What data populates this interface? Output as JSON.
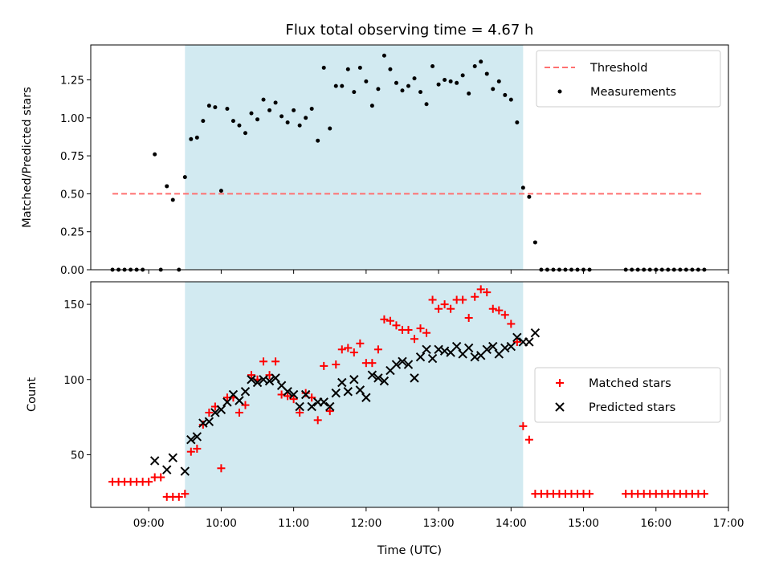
{
  "chart_data": [
    {
      "type": "scatter",
      "title": "Flux total observing time = 4.67 h",
      "xlabel": "",
      "ylabel": "Matched/Predicted stars",
      "xlim": [
        "08:12",
        "17:00"
      ],
      "ylim": [
        0,
        1.48
      ],
      "yticks": [
        0.0,
        0.25,
        0.5,
        0.75,
        1.0,
        1.25
      ],
      "ytick_labels": [
        "0.00",
        "0.25",
        "0.50",
        "0.75",
        "1.00",
        "1.25"
      ],
      "shaded_interval": [
        "09:30",
        "14:10"
      ],
      "shade_color": "#add8e6",
      "legend_position": "top-right",
      "series": [
        {
          "name": "Threshold",
          "style": "dashed-line",
          "color": "#ff7070",
          "points": [
            [
              "08:30",
              0.5
            ],
            [
              "16:40",
              0.5
            ]
          ]
        },
        {
          "name": "Measurements",
          "style": "dot",
          "color": "#000000",
          "points": [
            [
              "08:30",
              0.0
            ],
            [
              "08:35",
              0.0
            ],
            [
              "08:40",
              0.0
            ],
            [
              "08:45",
              0.0
            ],
            [
              "08:50",
              0.0
            ],
            [
              "08:55",
              0.0
            ],
            [
              "09:05",
              0.76
            ],
            [
              "09:10",
              0.0
            ],
            [
              "09:15",
              0.55
            ],
            [
              "09:20",
              0.46
            ],
            [
              "09:25",
              0.0
            ],
            [
              "09:30",
              0.61
            ],
            [
              "09:35",
              0.86
            ],
            [
              "09:40",
              0.87
            ],
            [
              "09:45",
              0.98
            ],
            [
              "09:50",
              1.08
            ],
            [
              "09:55",
              1.07
            ],
            [
              "10:00",
              0.52
            ],
            [
              "10:05",
              1.06
            ],
            [
              "10:10",
              0.98
            ],
            [
              "10:15",
              0.95
            ],
            [
              "10:20",
              0.9
            ],
            [
              "10:25",
              1.03
            ],
            [
              "10:30",
              0.99
            ],
            [
              "10:35",
              1.12
            ],
            [
              "10:40",
              1.05
            ],
            [
              "10:45",
              1.1
            ],
            [
              "10:50",
              1.01
            ],
            [
              "10:55",
              0.97
            ],
            [
              "11:00",
              1.05
            ],
            [
              "11:05",
              0.95
            ],
            [
              "11:10",
              1.0
            ],
            [
              "11:15",
              1.06
            ],
            [
              "11:20",
              0.85
            ],
            [
              "11:25",
              1.33
            ],
            [
              "11:30",
              0.93
            ],
            [
              "11:35",
              1.21
            ],
            [
              "11:40",
              1.21
            ],
            [
              "11:45",
              1.32
            ],
            [
              "11:50",
              1.17
            ],
            [
              "11:55",
              1.33
            ],
            [
              "12:00",
              1.24
            ],
            [
              "12:05",
              1.08
            ],
            [
              "12:10",
              1.19
            ],
            [
              "12:15",
              1.41
            ],
            [
              "12:20",
              1.32
            ],
            [
              "12:25",
              1.23
            ],
            [
              "12:30",
              1.18
            ],
            [
              "12:35",
              1.21
            ],
            [
              "12:40",
              1.26
            ],
            [
              "12:45",
              1.17
            ],
            [
              "12:50",
              1.09
            ],
            [
              "12:55",
              1.34
            ],
            [
              "13:00",
              1.22
            ],
            [
              "13:05",
              1.25
            ],
            [
              "13:10",
              1.24
            ],
            [
              "13:15",
              1.23
            ],
            [
              "13:20",
              1.28
            ],
            [
              "13:25",
              1.16
            ],
            [
              "13:30",
              1.34
            ],
            [
              "13:35",
              1.37
            ],
            [
              "13:40",
              1.29
            ],
            [
              "13:45",
              1.19
            ],
            [
              "13:50",
              1.24
            ],
            [
              "13:55",
              1.15
            ],
            [
              "14:00",
              1.12
            ],
            [
              "14:05",
              0.97
            ],
            [
              "14:10",
              0.54
            ],
            [
              "14:15",
              0.48
            ],
            [
              "14:20",
              0.18
            ],
            [
              "14:25",
              0.0
            ],
            [
              "14:30",
              0.0
            ],
            [
              "14:35",
              0.0
            ],
            [
              "14:40",
              0.0
            ],
            [
              "14:45",
              0.0
            ],
            [
              "14:50",
              0.0
            ],
            [
              "14:55",
              0.0
            ],
            [
              "15:00",
              0.0
            ],
            [
              "15:05",
              0.0
            ],
            [
              "15:35",
              0.0
            ],
            [
              "15:40",
              0.0
            ],
            [
              "15:45",
              0.0
            ],
            [
              "15:50",
              0.0
            ],
            [
              "15:55",
              0.0
            ],
            [
              "16:00",
              0.0
            ],
            [
              "16:05",
              0.0
            ],
            [
              "16:10",
              0.0
            ],
            [
              "16:15",
              0.0
            ],
            [
              "16:20",
              0.0
            ],
            [
              "16:25",
              0.0
            ],
            [
              "16:30",
              0.0
            ],
            [
              "16:35",
              0.0
            ],
            [
              "16:40",
              0.0
            ]
          ]
        }
      ]
    },
    {
      "type": "scatter",
      "title": "",
      "xlabel": "Time (UTC)",
      "ylabel": "Count",
      "xlim": [
        "08:12",
        "17:00"
      ],
      "xticks": [
        "09:00",
        "10:00",
        "11:00",
        "12:00",
        "13:00",
        "14:00",
        "15:00",
        "16:00",
        "17:00"
      ],
      "ylim": [
        15,
        165
      ],
      "yticks": [
        50,
        100,
        150
      ],
      "ytick_labels": [
        "50",
        "100",
        "150"
      ],
      "shaded_interval": [
        "09:30",
        "14:10"
      ],
      "shade_color": "#add8e6",
      "legend_position": "center-right",
      "series": [
        {
          "name": "Matched stars",
          "style": "plus",
          "color": "#ff0000",
          "points": [
            [
              "08:30",
              32
            ],
            [
              "08:35",
              32
            ],
            [
              "08:40",
              32
            ],
            [
              "08:45",
              32
            ],
            [
              "08:50",
              32
            ],
            [
              "08:55",
              32
            ],
            [
              "09:00",
              32
            ],
            [
              "09:05",
              35
            ],
            [
              "09:10",
              35
            ],
            [
              "09:15",
              22
            ],
            [
              "09:20",
              22
            ],
            [
              "09:25",
              22
            ],
            [
              "09:30",
              24
            ],
            [
              "09:35",
              52
            ],
            [
              "09:40",
              54
            ],
            [
              "09:45",
              70
            ],
            [
              "09:50",
              78
            ],
            [
              "09:55",
              82
            ],
            [
              "10:00",
              41
            ],
            [
              "10:05",
              88
            ],
            [
              "10:10",
              88
            ],
            [
              "10:15",
              78
            ],
            [
              "10:20",
              83
            ],
            [
              "10:25",
              103
            ],
            [
              "10:30",
              100
            ],
            [
              "10:35",
              112
            ],
            [
              "10:40",
              103
            ],
            [
              "10:45",
              112
            ],
            [
              "10:50",
              90
            ],
            [
              "10:55",
              89
            ],
            [
              "11:00",
              87
            ],
            [
              "11:05",
              78
            ],
            [
              "11:10",
              91
            ],
            [
              "11:15",
              88
            ],
            [
              "11:20",
              73
            ],
            [
              "11:25",
              109
            ],
            [
              "11:30",
              79
            ],
            [
              "11:35",
              110
            ],
            [
              "11:40",
              120
            ],
            [
              "11:45",
              121
            ],
            [
              "11:50",
              118
            ],
            [
              "11:55",
              124
            ],
            [
              "12:00",
              111
            ],
            [
              "12:05",
              111
            ],
            [
              "12:10",
              120
            ],
            [
              "12:15",
              140
            ],
            [
              "12:20",
              139
            ],
            [
              "12:25",
              136
            ],
            [
              "12:30",
              133
            ],
            [
              "12:35",
              133
            ],
            [
              "12:40",
              127
            ],
            [
              "12:45",
              134
            ],
            [
              "12:50",
              131
            ],
            [
              "12:55",
              153
            ],
            [
              "13:00",
              147
            ],
            [
              "13:05",
              150
            ],
            [
              "13:10",
              147
            ],
            [
              "13:15",
              153
            ],
            [
              "13:20",
              153
            ],
            [
              "13:25",
              141
            ],
            [
              "13:30",
              155
            ],
            [
              "13:35",
              160
            ],
            [
              "13:40",
              158
            ],
            [
              "13:45",
              147
            ],
            [
              "13:50",
              146
            ],
            [
              "13:55",
              143
            ],
            [
              "14:00",
              137
            ],
            [
              "14:05",
              125
            ],
            [
              "14:10",
              69
            ],
            [
              "14:15",
              60
            ],
            [
              "14:20",
              24
            ],
            [
              "14:25",
              24
            ],
            [
              "14:30",
              24
            ],
            [
              "14:35",
              24
            ],
            [
              "14:40",
              24
            ],
            [
              "14:45",
              24
            ],
            [
              "14:50",
              24
            ],
            [
              "14:55",
              24
            ],
            [
              "15:00",
              24
            ],
            [
              "15:05",
              24
            ],
            [
              "15:35",
              24
            ],
            [
              "15:40",
              24
            ],
            [
              "15:45",
              24
            ],
            [
              "15:50",
              24
            ],
            [
              "15:55",
              24
            ],
            [
              "16:00",
              24
            ],
            [
              "16:05",
              24
            ],
            [
              "16:10",
              24
            ],
            [
              "16:15",
              24
            ],
            [
              "16:20",
              24
            ],
            [
              "16:25",
              24
            ],
            [
              "16:30",
              24
            ],
            [
              "16:35",
              24
            ],
            [
              "16:40",
              24
            ]
          ]
        },
        {
          "name": "Predicted stars",
          "style": "x",
          "color": "#000000",
          "points": [
            [
              "09:05",
              46
            ],
            [
              "09:15",
              40
            ],
            [
              "09:20",
              48
            ],
            [
              "09:30",
              39
            ],
            [
              "09:35",
              60
            ],
            [
              "09:40",
              62
            ],
            [
              "09:45",
              71
            ],
            [
              "09:50",
              72
            ],
            [
              "09:55",
              78
            ],
            [
              "10:00",
              80
            ],
            [
              "10:05",
              85
            ],
            [
              "10:10",
              90
            ],
            [
              "10:15",
              86
            ],
            [
              "10:20",
              92
            ],
            [
              "10:25",
              100
            ],
            [
              "10:30",
              98
            ],
            [
              "10:35",
              100
            ],
            [
              "10:40",
              99
            ],
            [
              "10:45",
              101
            ],
            [
              "10:50",
              96
            ],
            [
              "10:55",
              92
            ],
            [
              "11:00",
              90
            ],
            [
              "11:05",
              82
            ],
            [
              "11:10",
              90
            ],
            [
              "11:15",
              82
            ],
            [
              "11:20",
              85
            ],
            [
              "11:25",
              85
            ],
            [
              "11:30",
              82
            ],
            [
              "11:35",
              91
            ],
            [
              "11:40",
              98
            ],
            [
              "11:45",
              92
            ],
            [
              "11:50",
              100
            ],
            [
              "11:55",
              93
            ],
            [
              "12:00",
              88
            ],
            [
              "12:05",
              103
            ],
            [
              "12:10",
              101
            ],
            [
              "12:15",
              99
            ],
            [
              "12:20",
              106
            ],
            [
              "12:25",
              110
            ],
            [
              "12:30",
              112
            ],
            [
              "12:35",
              110
            ],
            [
              "12:40",
              101
            ],
            [
              "12:45",
              115
            ],
            [
              "12:50",
              120
            ],
            [
              "12:55",
              114
            ],
            [
              "13:00",
              120
            ],
            [
              "13:05",
              119
            ],
            [
              "13:10",
              118
            ],
            [
              "13:15",
              122
            ],
            [
              "13:20",
              117
            ],
            [
              "13:25",
              121
            ],
            [
              "13:30",
              115
            ],
            [
              "13:35",
              116
            ],
            [
              "13:40",
              120
            ],
            [
              "13:45",
              122
            ],
            [
              "13:50",
              117
            ],
            [
              "13:55",
              121
            ],
            [
              "14:00",
              122
            ],
            [
              "14:05",
              128
            ],
            [
              "14:10",
              125
            ],
            [
              "14:15",
              125
            ],
            [
              "14:20",
              131
            ]
          ]
        }
      ]
    }
  ]
}
